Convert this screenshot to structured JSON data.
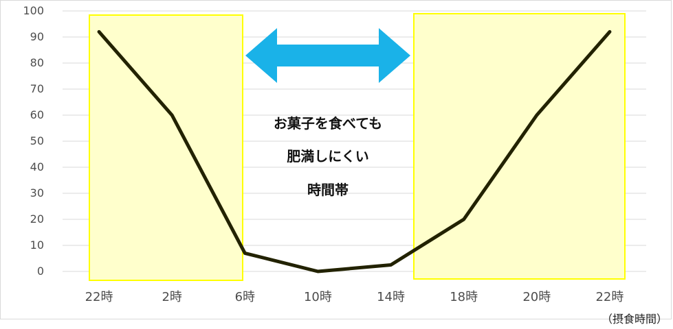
{
  "chart_data": {
    "type": "line",
    "categories": [
      "22時",
      "2時",
      "6時",
      "10時",
      "14時",
      "18時",
      "20時",
      "22時"
    ],
    "values": [
      92,
      60,
      7,
      0,
      2.5,
      20,
      60,
      92
    ],
    "ylim": [
      0,
      100
    ],
    "yticks": [
      0,
      10,
      20,
      30,
      40,
      50,
      60,
      70,
      80,
      90,
      100
    ],
    "grid": true,
    "line_color": "#222200",
    "highlight_color": "#ffffcc",
    "highlight_border": "#ffff00",
    "arrow_color": "#1ab2e8",
    "annotation_lines": [
      "お菓子を食べても",
      "肥満しにくい",
      "時間帯"
    ],
    "x_unit": "（摂食時間）"
  }
}
